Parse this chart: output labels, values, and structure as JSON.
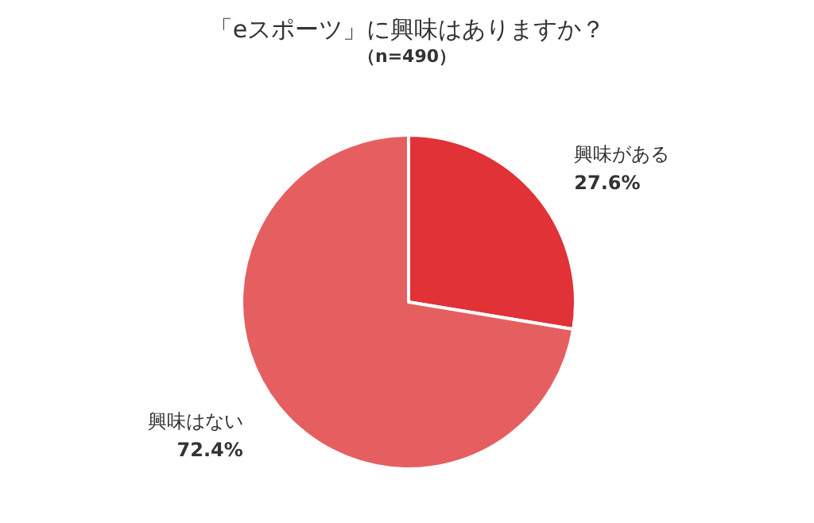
{
  "chart_data": {
    "type": "pie",
    "title": "「eスポーツ」に興味はありますか？",
    "subtitle": "（n=490）",
    "categories": [
      "興味がある",
      "興味はない"
    ],
    "values": [
      27.6,
      72.4
    ],
    "value_labels": [
      "27.6%",
      "72.4%"
    ],
    "colors": [
      "#e03237",
      "#e55f60"
    ],
    "legend": false
  }
}
